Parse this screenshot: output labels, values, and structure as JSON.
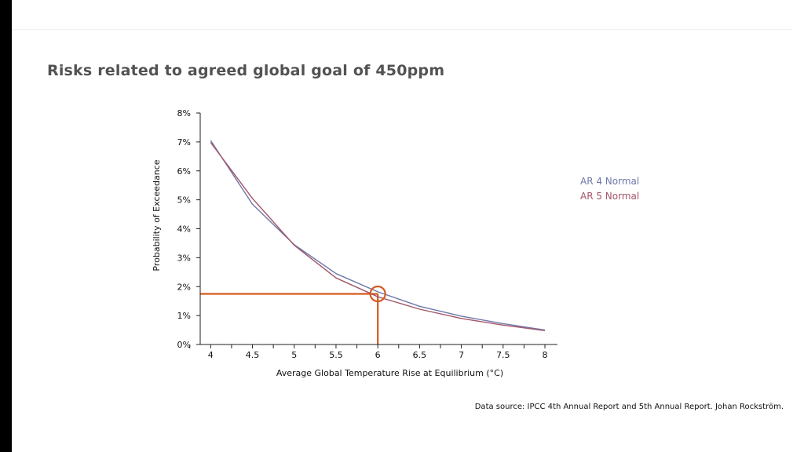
{
  "slide": {
    "title": "Risks related to agreed global goal of 450ppm",
    "source": "Data source: IPCC 4th Annual Report and 5th Annual Report. Johan Rockström."
  },
  "chart_data": {
    "type": "line",
    "title": "",
    "xlabel": "Average Global Temperature Rise at Equilibrium (°C)",
    "ylabel": "Probability of Exceedance",
    "x_ticks": [
      "4",
      "4.5",
      "5",
      "5.5",
      "6",
      "6.5",
      "7",
      "7.5",
      "8"
    ],
    "y_ticks": [
      "0%",
      "1%",
      "2%",
      "3%",
      "4%",
      "5%",
      "6%",
      "7%",
      "8%"
    ],
    "xlim": [
      3.875,
      8.15
    ],
    "ylim": [
      0,
      8
    ],
    "grid": false,
    "legend_position": "right",
    "series": [
      {
        "name": "AR 4 Normal",
        "color": "#6d78a8",
        "x": [
          4,
          4.5,
          5,
          5.5,
          6,
          6.5,
          7,
          7.5,
          8
        ],
        "y": [
          7.05,
          4.85,
          3.45,
          2.45,
          1.82,
          1.32,
          0.98,
          0.72,
          0.5
        ]
      },
      {
        "name": "AR 5 Normal",
        "color": "#a35569",
        "x": [
          4,
          4.5,
          5,
          5.5,
          6,
          6.5,
          7,
          7.5,
          8
        ],
        "y": [
          6.98,
          5.05,
          3.43,
          2.3,
          1.65,
          1.22,
          0.9,
          0.67,
          0.48
        ]
      }
    ],
    "annotation": {
      "type": "crosshair-circle",
      "x": 6,
      "y": 1.75,
      "color": "#d35b1f"
    }
  }
}
